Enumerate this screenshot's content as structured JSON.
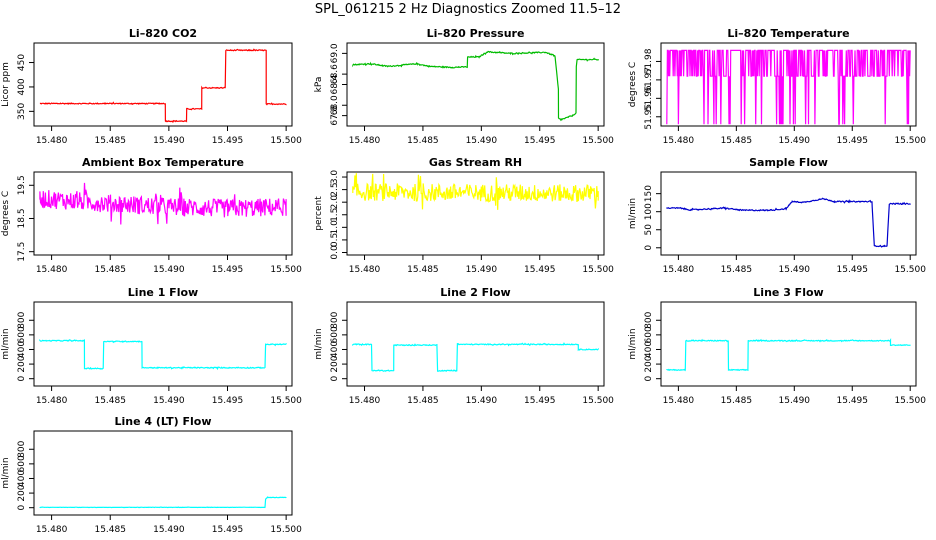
{
  "title": "SPL_061215  2 Hz Diagnostics Zoomed 11.5–12",
  "chart_data": [
    {
      "type": "line",
      "title": "Li–820 CO2",
      "ylabel": "Licor ppm",
      "color": "#ff0000",
      "xlim": [
        15.4785,
        15.5005
      ],
      "ylim": [
        320,
        490
      ],
      "xticks": [
        "15.480",
        "15.485",
        "15.490",
        "15.495",
        "15.500"
      ],
      "yticks": [
        {
          "v": 350,
          "label": "350"
        },
        {
          "v": 400,
          "label": "400"
        },
        {
          "v": 450,
          "label": "450"
        }
      ],
      "series": [
        {
          "x": [
            15.479,
            15.4897,
            15.4897,
            15.4915,
            15.4915,
            15.4928,
            15.4928,
            15.4948,
            15.4948,
            15.4983,
            15.4983,
            15.5
          ],
          "y": [
            366,
            366,
            330,
            330,
            355,
            355,
            398,
            398,
            475,
            475,
            365,
            365
          ]
        }
      ],
      "noise": 1
    },
    {
      "type": "line",
      "title": "Li–820 Pressure",
      "ylabel": "kPa",
      "color": "#00bb00",
      "xlim": [
        15.4785,
        15.5005
      ],
      "ylim": [
        67.6,
        69.2
      ],
      "xticks": [
        "15.480",
        "15.485",
        "15.490",
        "15.495",
        "15.500"
      ],
      "yticks": [
        {
          "v": 67.8,
          "label": "67.8"
        },
        {
          "v": 68.0,
          "label": "68.0"
        },
        {
          "v": 68.4,
          "label": "68.4"
        },
        {
          "v": 68.6,
          "label": "68.6"
        },
        {
          "v": 69.0,
          "label": "69.0"
        }
      ],
      "series": [
        {
          "x": [
            15.479,
            15.4805,
            15.482,
            15.4845,
            15.4855,
            15.4875,
            15.4888,
            15.4888,
            15.4898,
            15.4905,
            15.4925,
            15.4955,
            15.4963,
            15.4966,
            15.4966,
            15.4968,
            15.4978,
            15.4981,
            15.4981,
            15.4982,
            15.5
          ],
          "y": [
            68.78,
            68.8,
            68.75,
            68.8,
            68.75,
            68.73,
            68.74,
            68.93,
            68.93,
            69.03,
            69.0,
            69.02,
            68.95,
            68.3,
            67.75,
            67.72,
            67.8,
            67.85,
            68.7,
            68.88,
            68.88
          ]
        }
      ],
      "noise": 0.01
    },
    {
      "type": "line",
      "title": "Li–820 Temperature",
      "ylabel": "degrees C",
      "color": "#ff00ff",
      "xlim": [
        15.4785,
        15.5005
      ],
      "ylim": [
        51.945,
        51.99
      ],
      "xticks": [
        "15.480",
        "15.485",
        "15.490",
        "15.495",
        "15.500"
      ],
      "yticks": [
        {
          "v": 51.95,
          "label": "51.95"
        },
        {
          "v": 51.96,
          "label": "51.96"
        },
        {
          "v": 51.97,
          "label": "51.97"
        },
        {
          "v": 51.98,
          "label": "51.98"
        }
      ],
      "series": [
        {
          "x": [
            15.479,
            15.5
          ],
          "y": [
            51.986,
            51.986
          ]
        }
      ],
      "dense": {
        "high": 51.986,
        "low": 51.972,
        "bottom": 51.946,
        "gaps": [
          [
            15.4845,
            15.4852
          ]
        ]
      }
    },
    {
      "type": "line",
      "title": "Ambient Box Temperature",
      "ylabel": "degrees C",
      "color": "#ff00ff",
      "xlim": [
        15.4785,
        15.5005
      ],
      "ylim": [
        17.4,
        19.9
      ],
      "xticks": [
        "15.480",
        "15.485",
        "15.490",
        "15.495",
        "15.500"
      ],
      "yticks": [
        {
          "v": 17.5,
          "label": "17.5"
        },
        {
          "v": 18.5,
          "label": "18.5"
        },
        {
          "v": 19.5,
          "label": "19.5"
        }
      ],
      "series": [
        {
          "x": [
            15.479,
            15.485,
            15.49,
            15.495,
            15.5
          ],
          "y": [
            19.1,
            18.95,
            18.85,
            18.8,
            18.85
          ]
        }
      ],
      "noise": 0.28
    },
    {
      "type": "line",
      "title": "Gas Stream RH",
      "ylabel": "percent",
      "color": "#ffff00",
      "xlim": [
        15.4785,
        15.5005
      ],
      "ylim": [
        -0.1,
        3.2
      ],
      "xticks": [
        "15.480",
        "15.485",
        "15.490",
        "15.495",
        "15.500"
      ],
      "yticks": [
        {
          "v": 0.0,
          "label": "0.0"
        },
        {
          "v": 0.5,
          "label": "0.5"
        },
        {
          "v": 1.0,
          "label": "1.0"
        },
        {
          "v": 1.5,
          "label": "1.5"
        },
        {
          "v": 2.0,
          "label": "2.0"
        },
        {
          "v": 2.5,
          "label": "2.5"
        },
        {
          "v": 3.0,
          "label": "3.0"
        }
      ],
      "series": [
        {
          "x": [
            15.479,
            15.5
          ],
          "y": [
            2.4,
            2.35
          ]
        }
      ],
      "noise": 0.35
    },
    {
      "type": "line",
      "title": "Sample Flow",
      "ylabel": "ml/min",
      "color": "#0000cc",
      "xlim": [
        15.4785,
        15.5005
      ],
      "ylim": [
        -20,
        210
      ],
      "xticks": [
        "15.480",
        "15.485",
        "15.490",
        "15.495",
        "15.500"
      ],
      "yticks": [
        {
          "v": 0,
          "label": "0"
        },
        {
          "v": 50,
          "label": "50"
        },
        {
          "v": 100,
          "label": "100"
        },
        {
          "v": 150,
          "label": "150"
        }
      ],
      "series": [
        {
          "x": [
            15.479,
            15.4802,
            15.481,
            15.484,
            15.4855,
            15.4877,
            15.4893,
            15.4898,
            15.4908,
            15.4925,
            15.4935,
            15.4967,
            15.4969,
            15.4978,
            15.498,
            15.4982,
            15.5
          ],
          "y": [
            110,
            110,
            105,
            110,
            104,
            104,
            108,
            128,
            126,
            136,
            128,
            128,
            5,
            5,
            6,
            122,
            122
          ]
        }
      ],
      "noise": 1.5
    },
    {
      "type": "line",
      "title": "Line 1 Flow",
      "ylabel": "ml/min",
      "color": "#00ffff",
      "xlim": [
        15.4785,
        15.5005
      ],
      "ylim": [
        -100,
        1050
      ],
      "xticks": [
        "15.480",
        "15.485",
        "15.490",
        "15.495",
        "15.500"
      ],
      "yticks": [
        {
          "v": 0,
          "label": "0"
        },
        {
          "v": 200,
          "label": "200"
        },
        {
          "v": 400,
          "label": "400"
        },
        {
          "v": 600,
          "label": "600"
        },
        {
          "v": 800,
          "label": "800"
        }
      ],
      "series": [
        {
          "x": [
            15.479,
            15.4828,
            15.4828,
            15.4844,
            15.4844,
            15.4877,
            15.4877,
            15.4982,
            15.4982,
            15.5
          ],
          "y": [
            520,
            520,
            140,
            140,
            510,
            510,
            150,
            150,
            470,
            470
          ]
        }
      ],
      "noise": 6
    },
    {
      "type": "line",
      "title": "Line 2 Flow",
      "ylabel": "ml/min",
      "color": "#00ffff",
      "xlim": [
        15.4785,
        15.5005
      ],
      "ylim": [
        -100,
        1050
      ],
      "xticks": [
        "15.480",
        "15.485",
        "15.490",
        "15.495",
        "15.500"
      ],
      "yticks": [
        {
          "v": 0,
          "label": "0"
        },
        {
          "v": 200,
          "label": "200"
        },
        {
          "v": 400,
          "label": "400"
        },
        {
          "v": 600,
          "label": "600"
        },
        {
          "v": 800,
          "label": "800"
        }
      ],
      "series": [
        {
          "x": [
            15.479,
            15.4806,
            15.4806,
            15.4825,
            15.4825,
            15.4862,
            15.4862,
            15.4879,
            15.4879,
            15.4983,
            15.4983,
            15.5
          ],
          "y": [
            470,
            470,
            110,
            110,
            460,
            460,
            110,
            110,
            470,
            470,
            400,
            400
          ]
        }
      ],
      "noise": 6
    },
    {
      "type": "line",
      "title": "Line 3 Flow",
      "ylabel": "ml/min",
      "color": "#00ffff",
      "xlim": [
        15.4785,
        15.5005
      ],
      "ylim": [
        -100,
        1050
      ],
      "xticks": [
        "15.480",
        "15.485",
        "15.490",
        "15.495",
        "15.500"
      ],
      "yticks": [
        {
          "v": 0,
          "label": "0"
        },
        {
          "v": 200,
          "label": "200"
        },
        {
          "v": 400,
          "label": "400"
        },
        {
          "v": 600,
          "label": "600"
        },
        {
          "v": 800,
          "label": "800"
        }
      ],
      "series": [
        {
          "x": [
            15.479,
            15.4806,
            15.4806,
            15.4843,
            15.4843,
            15.486,
            15.486,
            15.4983,
            15.4983,
            15.5
          ],
          "y": [
            120,
            120,
            520,
            520,
            120,
            120,
            520,
            520,
            460,
            460
          ]
        }
      ],
      "noise": 6
    },
    {
      "type": "line",
      "title": "Line 4 (LT) Flow",
      "ylabel": "ml/min",
      "color": "#00ffff",
      "xlim": [
        15.4785,
        15.5005
      ],
      "ylim": [
        -100,
        1050
      ],
      "xticks": [
        "15.480",
        "15.485",
        "15.490",
        "15.495",
        "15.500"
      ],
      "yticks": [
        {
          "v": 0,
          "label": "0"
        },
        {
          "v": 200,
          "label": "200"
        },
        {
          "v": 400,
          "label": "400"
        },
        {
          "v": 600,
          "label": "600"
        },
        {
          "v": 800,
          "label": "800"
        }
      ],
      "series": [
        {
          "x": [
            15.479,
            15.4982,
            15.4982,
            15.4984,
            15.5
          ],
          "y": [
            5,
            5,
            110,
            140,
            140
          ]
        }
      ],
      "noise": 2
    }
  ]
}
